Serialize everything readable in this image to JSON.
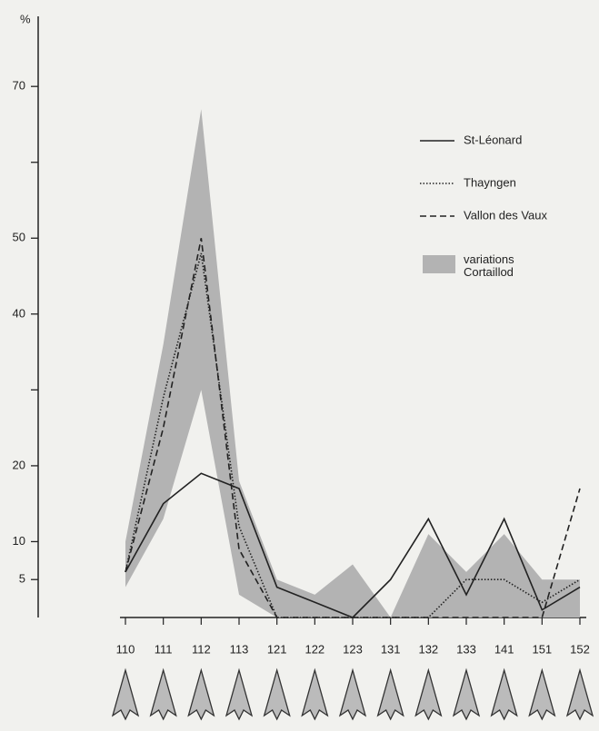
{
  "chart_data": {
    "type": "line",
    "y_label": "%",
    "categories": [
      "110",
      "111",
      "112",
      "113",
      "121",
      "122",
      "123",
      "131",
      "132",
      "133",
      "141",
      "151",
      "152"
    ],
    "series": [
      {
        "name": "St-Léonard",
        "color": "#222222",
        "dash": "solid",
        "values": [
          6,
          15,
          19,
          17,
          4,
          2,
          0,
          5,
          13,
          3,
          13,
          1,
          4
        ]
      },
      {
        "name": "Thayngen",
        "color": "#222222",
        "dash": "dotted",
        "values": [
          6,
          29,
          48,
          12,
          0,
          0,
          0,
          0,
          0,
          5,
          5,
          2,
          5
        ]
      },
      {
        "name": "Vallon des Vaux",
        "color": "#222222",
        "dash": "dashed",
        "values": [
          6,
          25,
          50,
          9,
          0,
          0,
          0,
          0,
          0,
          0,
          0,
          0,
          17
        ]
      }
    ],
    "band": {
      "name": "variations Cortaillod",
      "color": "#b3b3b3",
      "lower": [
        4,
        13,
        30,
        3,
        0,
        0,
        0,
        0,
        0,
        0,
        0,
        0,
        0
      ],
      "upper": [
        10,
        36,
        67,
        18,
        5,
        3,
        7,
        0,
        11,
        6,
        11,
        5,
        5
      ]
    },
    "ylim": [
      0,
      79
    ],
    "yticks": [
      5,
      10,
      20,
      40,
      50,
      70
    ],
    "minor_yticks": [
      30,
      60
    ]
  }
}
